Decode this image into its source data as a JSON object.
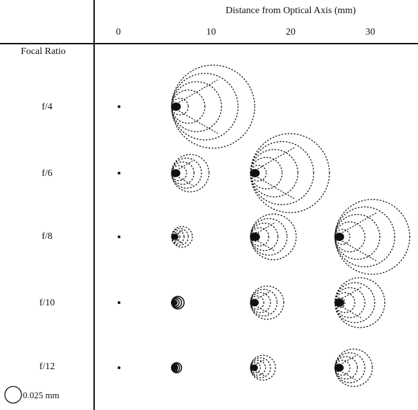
{
  "header": {
    "title": "Distance from Optical Axis (mm)",
    "ticks": [
      "0",
      "10",
      "20",
      "30"
    ]
  },
  "rows": {
    "column_title": "Focal Ratio",
    "labels": [
      "f/4",
      "f/6",
      "f/8",
      "f/10",
      "f/12"
    ]
  },
  "scale": {
    "label": "0.025 mm"
  },
  "grid": {
    "distances_mm": [
      0,
      10,
      20,
      30
    ],
    "focal_ratios": [
      "f/4",
      "f/6",
      "f/8",
      "f/10",
      "f/12"
    ],
    "spot_extent_relative": [
      [
        0.0,
        1.0,
        null,
        null
      ],
      [
        0.0,
        0.45,
        0.95,
        null
      ],
      [
        0.0,
        0.25,
        0.55,
        0.9
      ],
      [
        0.0,
        0.15,
        0.4,
        0.6
      ],
      [
        0.0,
        0.12,
        0.3,
        0.45
      ]
    ]
  }
}
